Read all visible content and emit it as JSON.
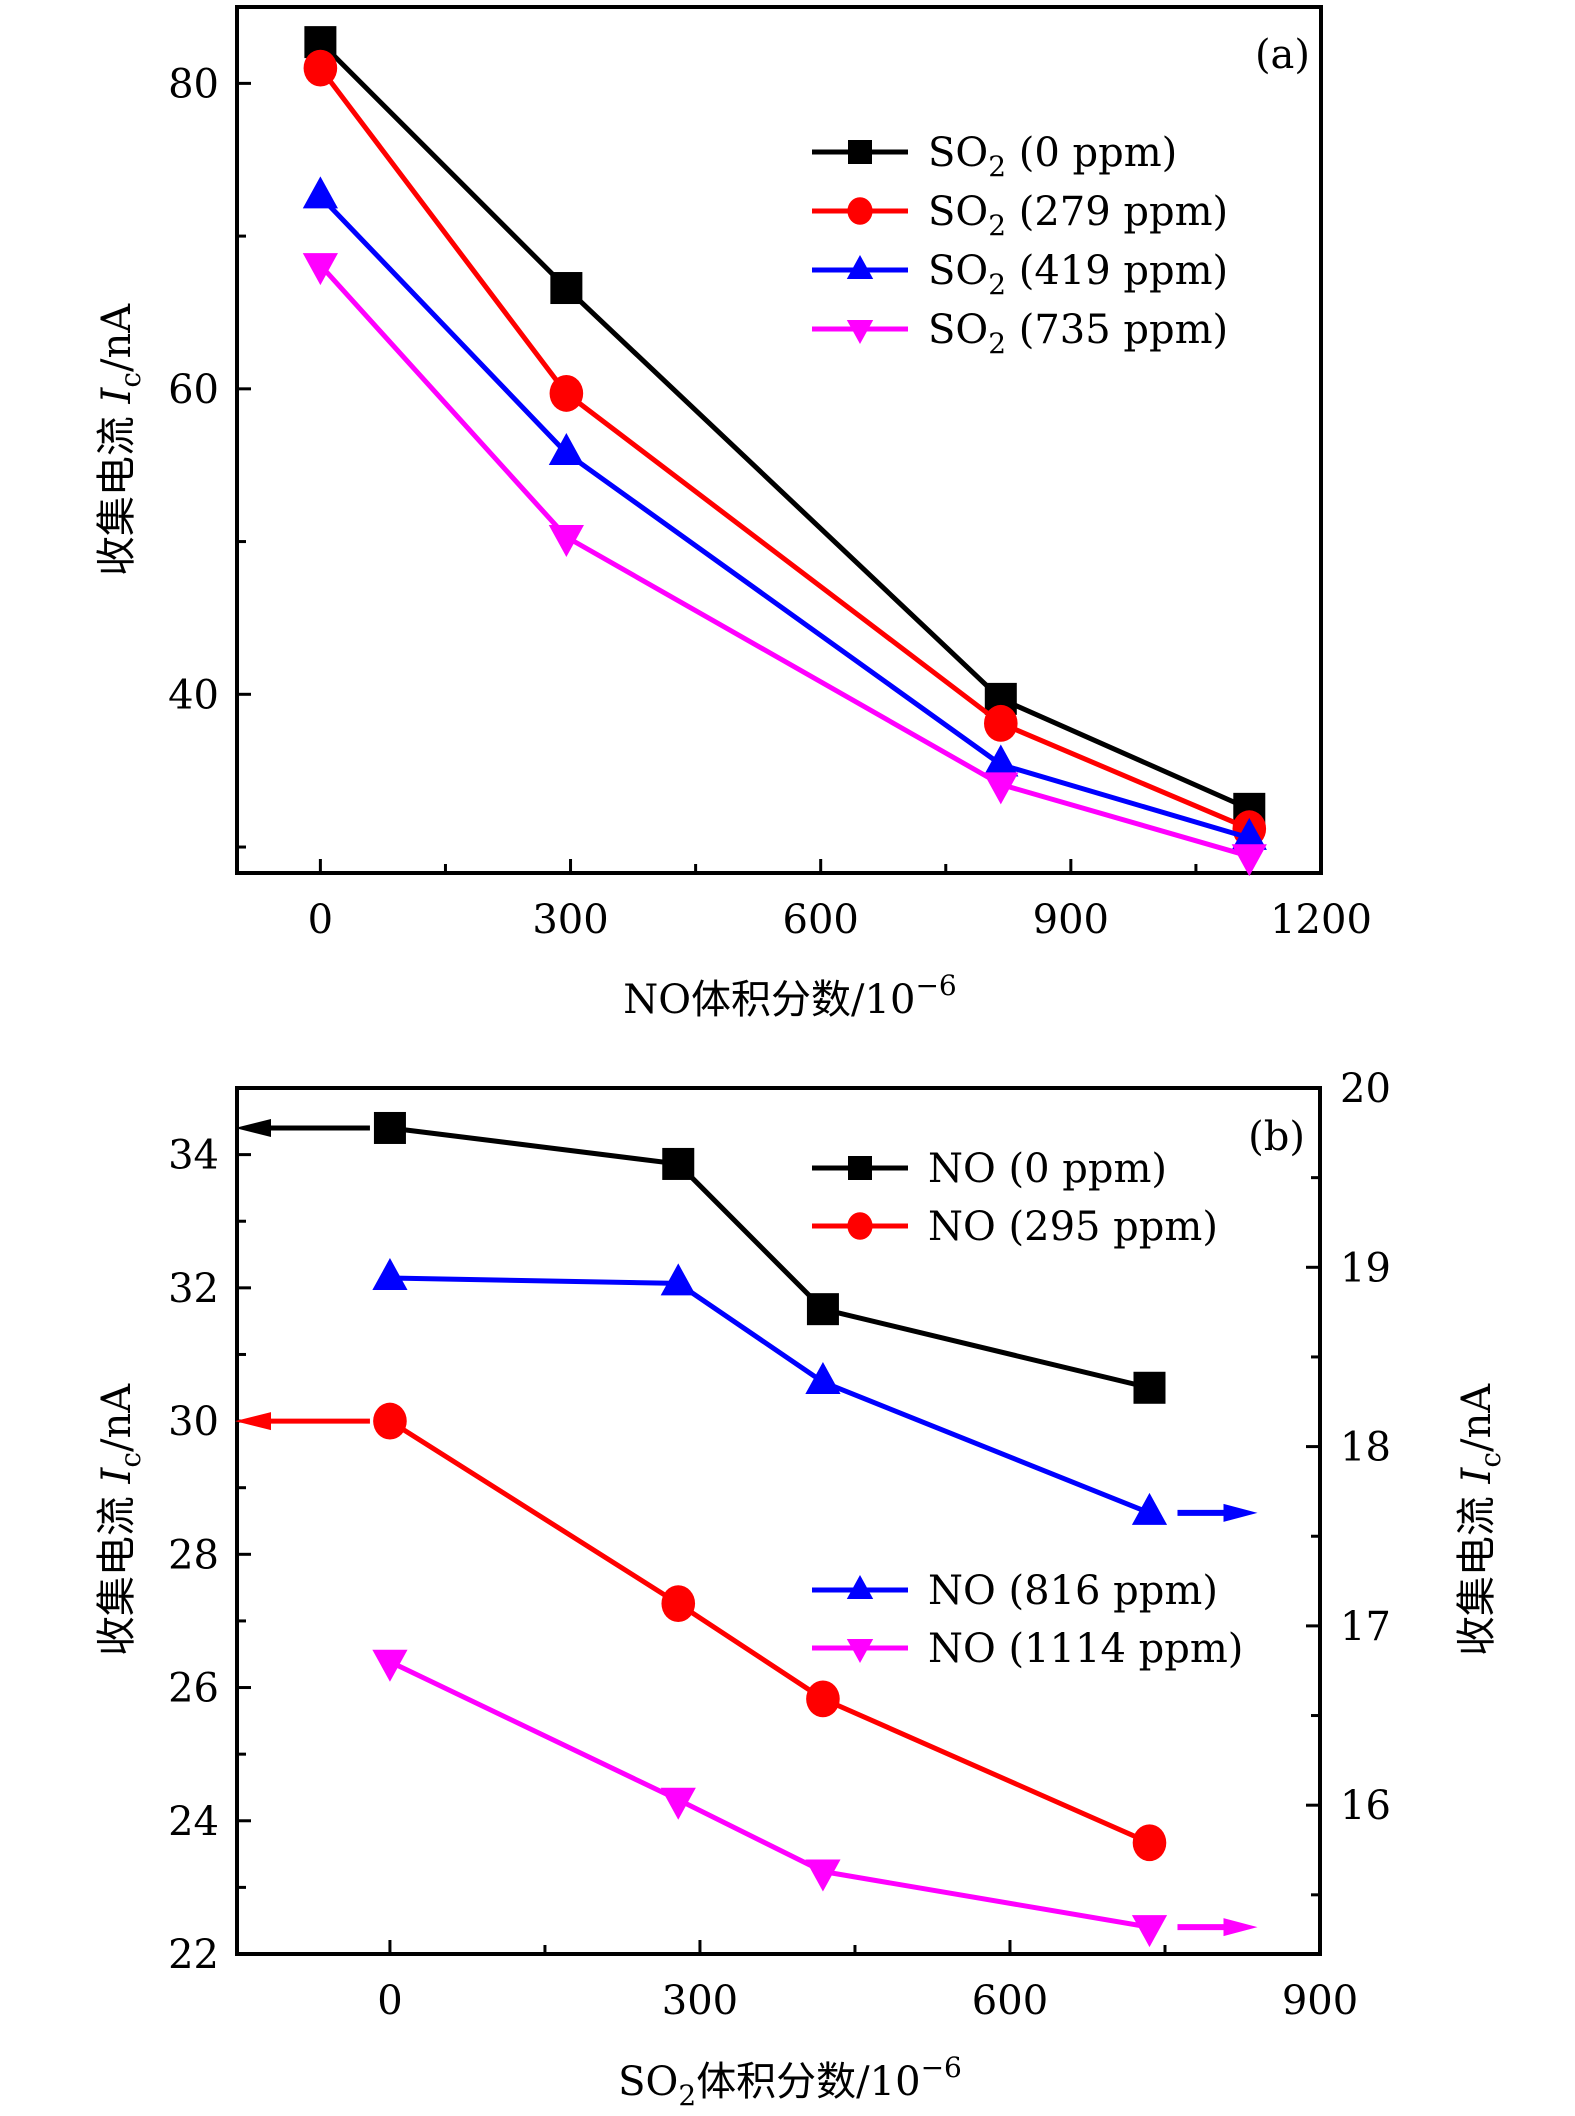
{
  "chart_data": [
    {
      "panel": "(a)",
      "type": "line",
      "title": "",
      "xlabel": "NO体积分数/10⁻⁶",
      "ylabel": "收集电流 I_c/nA",
      "xlim": [
        -100,
        1200
      ],
      "ylim": [
        28.3,
        85
      ],
      "xticks": [
        0,
        300,
        600,
        900,
        1200
      ],
      "xminor": [
        150,
        450,
        750,
        1050
      ],
      "yticks": [
        40,
        60,
        80
      ],
      "yminor": [
        30,
        50,
        70
      ],
      "grid": false,
      "legend_position": "top-right",
      "x": [
        0,
        295,
        816,
        1114
      ],
      "series": [
        {
          "name": "SO₂ (0 ppm)",
          "label_main": "SO",
          "label_sub": "2",
          "label_rest": " (0 ppm)",
          "color": "#000000",
          "marker": "square",
          "values": [
            82.7,
            66.6,
            39.7,
            32.5
          ]
        },
        {
          "name": "SO₂ (279 ppm)",
          "label_main": "SO",
          "label_sub": "2",
          "label_rest": " (279 ppm)",
          "color": "#ff0000",
          "marker": "circle",
          "values": [
            81.0,
            59.7,
            38.1,
            31.2
          ]
        },
        {
          "name": "SO₂ (419 ppm)",
          "label_main": "SO",
          "label_sub": "2",
          "label_rest": " (419 ppm)",
          "color": "#0000ff",
          "marker": "triangle-up",
          "values": [
            72.6,
            55.8,
            35.4,
            30.6
          ]
        },
        {
          "name": "SO₂ (735 ppm)",
          "label_main": "SO",
          "label_sub": "2",
          "label_rest": " (735 ppm)",
          "color": "#ff00ff",
          "marker": "triangle-down",
          "values": [
            68.1,
            50.3,
            34.1,
            29.4
          ]
        }
      ]
    },
    {
      "panel": "(b)",
      "type": "line",
      "title": "",
      "xlabel": "SO₂体积分数/10⁻⁶",
      "ylabel": "收集电流 I_c/nA",
      "ylabel_right": "收集电流 I_c/nA",
      "xlim": [
        -148,
        900
      ],
      "ylim": [
        22,
        35
      ],
      "ylim_right": [
        15.17,
        20
      ],
      "xticks": [
        0,
        300,
        600,
        900
      ],
      "xminor": [
        150,
        450,
        750
      ],
      "yticks": [
        22,
        24,
        26,
        28,
        30,
        32,
        34
      ],
      "yminor": [
        23,
        25,
        27,
        29,
        31,
        33
      ],
      "yticks_right": [
        16,
        17,
        18,
        19,
        20
      ],
      "yminor_right": [
        15.5,
        16.5,
        17.5,
        18.5,
        19.5
      ],
      "grid": false,
      "legend_position": "top-right / middle-right",
      "x": [
        0,
        279,
        419,
        735
      ],
      "series": [
        {
          "name": "NO (0 ppm)",
          "color": "#000000",
          "marker": "square",
          "axis": "left",
          "values": [
            34.4,
            33.86,
            31.68,
            30.5
          ]
        },
        {
          "name": "NO (295 ppm)",
          "color": "#ff0000",
          "marker": "circle",
          "axis": "left",
          "values": [
            30.0,
            27.26,
            25.83,
            23.67
          ]
        },
        {
          "name": "NO (816 ppm)",
          "color": "#0000ff",
          "marker": "triangle-up",
          "axis": "right",
          "values": [
            18.94,
            18.91,
            18.36,
            17.63
          ]
        },
        {
          "name": "NO (1114 ppm)",
          "color": "#ff00ff",
          "marker": "triangle-down",
          "axis": "right",
          "values": [
            16.8,
            16.03,
            15.63,
            15.32
          ]
        }
      ],
      "axis_arrows": [
        {
          "series": "NO (0 ppm)",
          "direction": "left"
        },
        {
          "series": "NO (295 ppm)",
          "direction": "left"
        },
        {
          "series": "NO (816 ppm)",
          "direction": "right"
        },
        {
          "series": "NO (1114 ppm)",
          "direction": "right"
        }
      ]
    }
  ],
  "labels": {
    "a_panel": "(a)",
    "b_panel": "(b)",
    "ylabel_cn": "收集电流 ",
    "ylabel_I": "I",
    "ylabel_c": "c",
    "ylabel_unit": "/nA",
    "a_xlabel": "NO体积分数/10",
    "b_xlabel_pre": "SO",
    "b_xlabel_sub": "2",
    "b_xlabel_post": "体积分数/10",
    "exp": "−6"
  }
}
